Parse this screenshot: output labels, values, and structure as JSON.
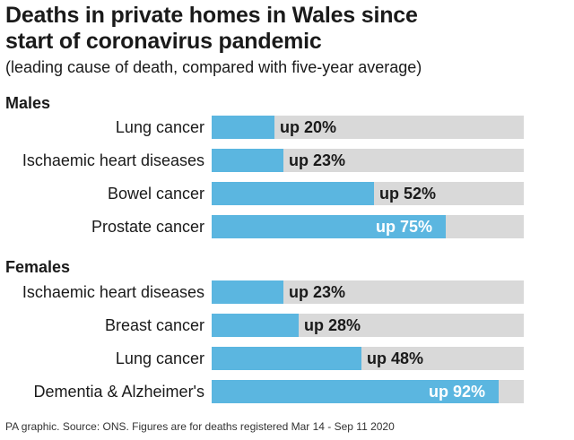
{
  "chart_data": {
    "type": "bar",
    "orientation": "horizontal",
    "title": "Deaths in private homes in Wales since start of coronavirus pandemic",
    "subtitle": "(leading cause of death, compared with five-year average)",
    "unit": "% increase over five-year average",
    "xlim": [
      0,
      100
    ],
    "groups": [
      {
        "name": "Males",
        "categories": [
          "Lung cancer",
          "Ischaemic heart diseases",
          "Bowel cancer",
          "Prostate cancer"
        ],
        "values": [
          20,
          23,
          52,
          75
        ],
        "labels": [
          "up 20%",
          "up 23%",
          "up 52%",
          "up 75%"
        ]
      },
      {
        "name": "Females",
        "categories": [
          "Ischaemic heart diseases",
          "Breast cancer",
          "Lung cancer",
          "Dementia & Alzheimer's"
        ],
        "values": [
          23,
          28,
          48,
          92
        ],
        "labels": [
          "up 23%",
          "up 28%",
          "up 48%",
          "up 92%"
        ]
      }
    ],
    "colors": {
      "bar": "#5bb6e0",
      "track": "#d9d9d9"
    }
  },
  "title_line1": "Deaths in private homes in Wales since",
  "title_line2": "start of coronavirus pandemic",
  "source": "PA graphic. Source: ONS. Figures are for deaths registered Mar 14 - Sep 11 2020"
}
